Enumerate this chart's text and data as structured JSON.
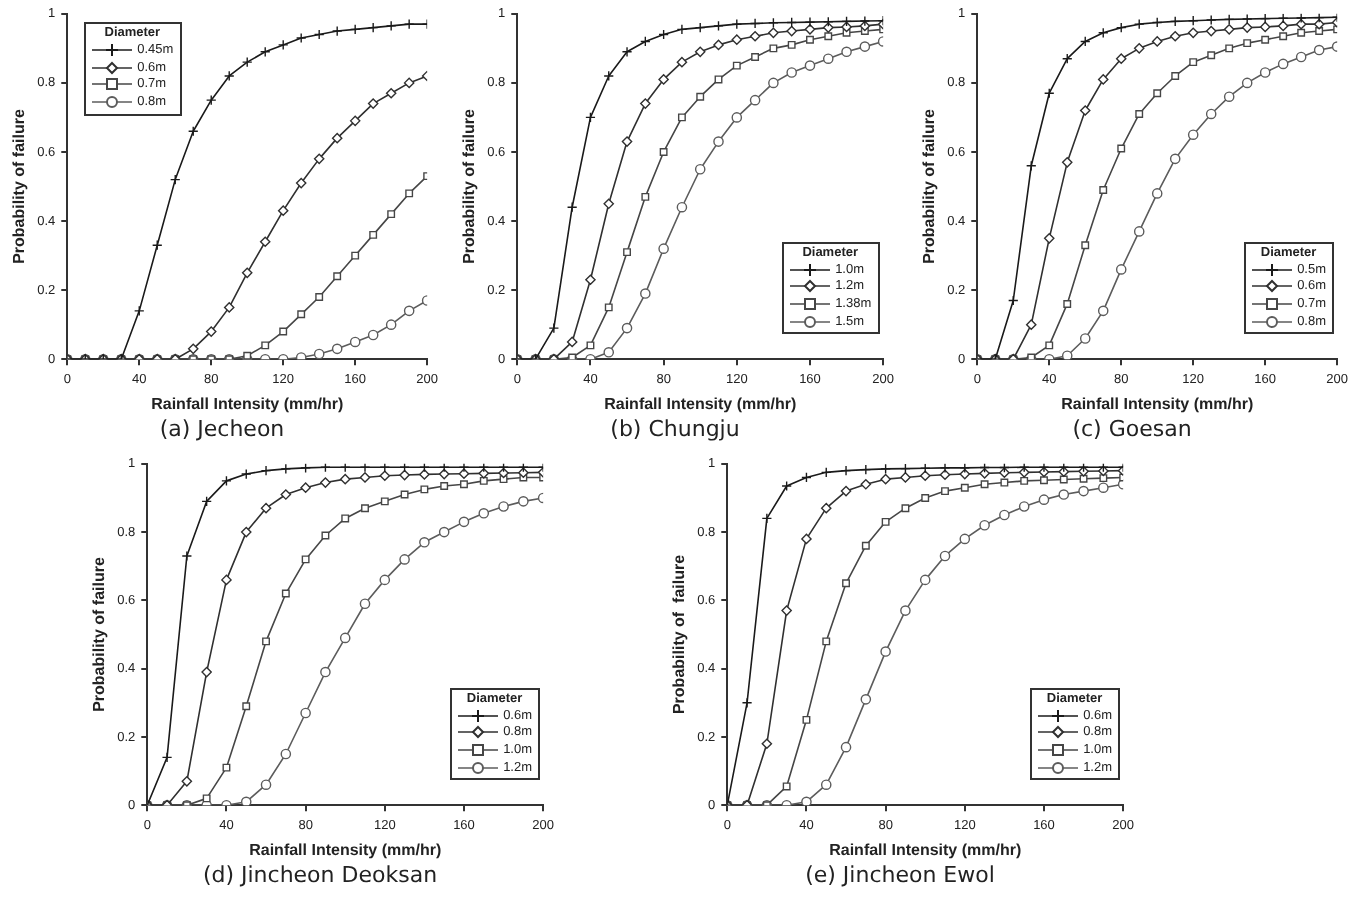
{
  "chart_data": [
    {
      "type": "line",
      "title": "(a) Jecheon",
      "xlabel": "Rainfall Intensity (mm/hr)",
      "ylabel": "Probability of failure",
      "legend_title": "Diameter",
      "legend": "top left",
      "grid": false,
      "x": [
        0,
        10,
        20,
        30,
        40,
        50,
        60,
        70,
        80,
        90,
        100,
        110,
        120,
        130,
        140,
        150,
        160,
        170,
        180,
        190,
        200
      ],
      "xlim": [
        0,
        200
      ],
      "xticks": [
        0,
        40,
        80,
        120,
        160,
        200
      ],
      "ylim": [
        0,
        1
      ],
      "yticks": [
        0,
        0.2,
        0.4,
        0.6,
        0.8,
        1
      ],
      "series": [
        {
          "name": "0.45m",
          "color": "#1a1a1a",
          "marker": "cross",
          "values": [
            0,
            0,
            0,
            0,
            0.14,
            0.33,
            0.52,
            0.66,
            0.75,
            0.82,
            0.86,
            0.89,
            0.91,
            0.93,
            0.94,
            0.95,
            0.955,
            0.96,
            0.965,
            0.97,
            0.97
          ]
        },
        {
          "name": "0.6m",
          "color": "#303030",
          "marker": "diamond",
          "values": [
            0,
            0,
            0,
            0,
            0,
            0,
            0,
            0.03,
            0.08,
            0.15,
            0.25,
            0.34,
            0.43,
            0.51,
            0.58,
            0.64,
            0.69,
            0.74,
            0.77,
            0.8,
            0.82
          ]
        },
        {
          "name": "0.7m",
          "color": "#464646",
          "marker": "square",
          "values": [
            0,
            0,
            0,
            0,
            0,
            0,
            0,
            0,
            0,
            0,
            0.01,
            0.04,
            0.08,
            0.13,
            0.18,
            0.24,
            0.3,
            0.36,
            0.42,
            0.48,
            0.53
          ]
        },
        {
          "name": "0.8m",
          "color": "#5c5c5c",
          "marker": "circle",
          "values": [
            0,
            0,
            0,
            0,
            0,
            0,
            0,
            0,
            0,
            0,
            0,
            0,
            0,
            0.005,
            0.015,
            0.03,
            0.05,
            0.07,
            0.1,
            0.14,
            0.17
          ]
        }
      ]
    },
    {
      "type": "line",
      "title": "(b) Chungju",
      "xlabel": "Rainfall Intensity (mm/hr)",
      "ylabel": "Probability of failure",
      "legend_title": "Diameter",
      "legend": "bottom right",
      "grid": false,
      "x": [
        0,
        10,
        20,
        30,
        40,
        50,
        60,
        70,
        80,
        90,
        100,
        110,
        120,
        130,
        140,
        150,
        160,
        170,
        180,
        190,
        200
      ],
      "xlim": [
        0,
        200
      ],
      "xticks": [
        0,
        40,
        80,
        120,
        160,
        200
      ],
      "ylim": [
        0,
        1
      ],
      "yticks": [
        0,
        0.2,
        0.4,
        0.6,
        0.8,
        1
      ],
      "series": [
        {
          "name": "1.0m",
          "color": "#1a1a1a",
          "marker": "cross",
          "values": [
            0,
            0,
            0.09,
            0.44,
            0.7,
            0.82,
            0.89,
            0.92,
            0.94,
            0.955,
            0.96,
            0.965,
            0.97,
            0.972,
            0.974,
            0.975,
            0.976,
            0.977,
            0.978,
            0.979,
            0.98
          ]
        },
        {
          "name": "1.2m",
          "color": "#303030",
          "marker": "diamond",
          "values": [
            0,
            0,
            0,
            0.05,
            0.23,
            0.45,
            0.63,
            0.74,
            0.81,
            0.86,
            0.89,
            0.91,
            0.925,
            0.935,
            0.945,
            0.95,
            0.955,
            0.96,
            0.962,
            0.965,
            0.97
          ]
        },
        {
          "name": "1.38m",
          "color": "#464646",
          "marker": "square",
          "values": [
            0,
            0,
            0,
            0.005,
            0.04,
            0.15,
            0.31,
            0.47,
            0.6,
            0.7,
            0.76,
            0.81,
            0.85,
            0.875,
            0.9,
            0.91,
            0.925,
            0.935,
            0.945,
            0.95,
            0.955
          ]
        },
        {
          "name": "1.5m",
          "color": "#5c5c5c",
          "marker": "circle",
          "values": [
            0,
            0,
            0,
            0,
            0,
            0.02,
            0.09,
            0.19,
            0.32,
            0.44,
            0.55,
            0.63,
            0.7,
            0.75,
            0.8,
            0.83,
            0.85,
            0.87,
            0.89,
            0.905,
            0.92
          ]
        }
      ]
    },
    {
      "type": "line",
      "title": "(c) Goesan",
      "xlabel": "Rainfall Intensity (mm/hr)",
      "ylabel": "Probability of failure",
      "legend_title": "Diameter",
      "legend": "bottom right",
      "grid": false,
      "x": [
        0,
        10,
        20,
        30,
        40,
        50,
        60,
        70,
        80,
        90,
        100,
        110,
        120,
        130,
        140,
        150,
        160,
        170,
        180,
        190,
        200
      ],
      "xlim": [
        0,
        200
      ],
      "xticks": [
        0,
        40,
        80,
        120,
        160,
        200
      ],
      "ylim": [
        0,
        1
      ],
      "yticks": [
        0,
        0.2,
        0.4,
        0.6,
        0.8,
        1
      ],
      "series": [
        {
          "name": "0.5m",
          "color": "#1a1a1a",
          "marker": "cross",
          "values": [
            0,
            0,
            0.17,
            0.56,
            0.77,
            0.87,
            0.92,
            0.945,
            0.96,
            0.97,
            0.975,
            0.978,
            0.98,
            0.982,
            0.984,
            0.985,
            0.986,
            0.987,
            0.988,
            0.989,
            0.99
          ]
        },
        {
          "name": "0.6m",
          "color": "#303030",
          "marker": "diamond",
          "values": [
            0,
            0,
            0,
            0.1,
            0.35,
            0.57,
            0.72,
            0.81,
            0.87,
            0.9,
            0.92,
            0.935,
            0.945,
            0.95,
            0.955,
            0.96,
            0.962,
            0.965,
            0.97,
            0.97,
            0.975
          ]
        },
        {
          "name": "0.7m",
          "color": "#464646",
          "marker": "square",
          "values": [
            0,
            0,
            0,
            0.005,
            0.04,
            0.16,
            0.33,
            0.49,
            0.61,
            0.71,
            0.77,
            0.82,
            0.86,
            0.88,
            0.9,
            0.915,
            0.925,
            0.935,
            0.945,
            0.95,
            0.955
          ]
        },
        {
          "name": "0.8m",
          "color": "#5c5c5c",
          "marker": "circle",
          "values": [
            0,
            0,
            0,
            0,
            0,
            0.01,
            0.06,
            0.14,
            0.26,
            0.37,
            0.48,
            0.58,
            0.65,
            0.71,
            0.76,
            0.8,
            0.83,
            0.855,
            0.875,
            0.895,
            0.905
          ]
        }
      ]
    },
    {
      "type": "line",
      "title": "(d) Jincheon Deoksan",
      "xlabel": "Rainfall Intensity (mm/hr)",
      "ylabel": "Probability of failure",
      "legend_title": "Diameter",
      "legend": "bottom right",
      "grid": false,
      "x": [
        0,
        10,
        20,
        30,
        40,
        50,
        60,
        70,
        80,
        90,
        100,
        110,
        120,
        130,
        140,
        150,
        160,
        170,
        180,
        190,
        200
      ],
      "xlim": [
        0,
        200
      ],
      "xticks": [
        0,
        40,
        80,
        120,
        160,
        200
      ],
      "ylim": [
        0,
        1
      ],
      "yticks": [
        0,
        0.2,
        0.4,
        0.6,
        0.8,
        1
      ],
      "series": [
        {
          "name": "0.6m",
          "color": "#1a1a1a",
          "marker": "cross",
          "values": [
            0,
            0.14,
            0.73,
            0.89,
            0.95,
            0.97,
            0.98,
            0.985,
            0.988,
            0.99,
            0.99,
            0.99,
            0.99,
            0.99,
            0.99,
            0.99,
            0.99,
            0.99,
            0.99,
            0.99,
            0.99
          ]
        },
        {
          "name": "0.8m",
          "color": "#303030",
          "marker": "diamond",
          "values": [
            0,
            0,
            0.07,
            0.39,
            0.66,
            0.8,
            0.87,
            0.91,
            0.93,
            0.945,
            0.955,
            0.96,
            0.965,
            0.967,
            0.969,
            0.97,
            0.971,
            0.972,
            0.973,
            0.974,
            0.975
          ]
        },
        {
          "name": "1.0m",
          "color": "#464646",
          "marker": "square",
          "values": [
            0,
            0,
            0,
            0.02,
            0.11,
            0.29,
            0.48,
            0.62,
            0.72,
            0.79,
            0.84,
            0.87,
            0.89,
            0.91,
            0.925,
            0.935,
            0.94,
            0.95,
            0.955,
            0.96,
            0.96
          ]
        },
        {
          "name": "1.2m",
          "color": "#5c5c5c",
          "marker": "circle",
          "values": [
            0,
            0,
            0,
            0,
            0,
            0.01,
            0.06,
            0.15,
            0.27,
            0.39,
            0.49,
            0.59,
            0.66,
            0.72,
            0.77,
            0.8,
            0.83,
            0.855,
            0.875,
            0.89,
            0.9
          ]
        }
      ]
    },
    {
      "type": "line",
      "title": "(e) Jincheon Ewol",
      "xlabel": "Rainfall Intensity (mm/hr)",
      "ylabel": "Probability of  failure",
      "legend_title": "Diameter",
      "legend": "bottom right",
      "grid": false,
      "x": [
        0,
        10,
        20,
        30,
        40,
        50,
        60,
        70,
        80,
        90,
        100,
        110,
        120,
        130,
        140,
        150,
        160,
        170,
        180,
        190,
        200
      ],
      "xlim": [
        0,
        200
      ],
      "xticks": [
        0,
        40,
        80,
        120,
        160,
        200
      ],
      "ylim": [
        0,
        1
      ],
      "yticks": [
        0,
        0.2,
        0.4,
        0.6,
        0.8,
        1
      ],
      "series": [
        {
          "name": "0.6m",
          "color": "#1a1a1a",
          "marker": "cross",
          "values": [
            0,
            0.3,
            0.84,
            0.935,
            0.96,
            0.975,
            0.98,
            0.983,
            0.985,
            0.986,
            0.987,
            0.988,
            0.988,
            0.989,
            0.989,
            0.99,
            0.99,
            0.99,
            0.99,
            0.99,
            0.99
          ]
        },
        {
          "name": "0.8m",
          "color": "#303030",
          "marker": "diamond",
          "values": [
            0,
            0,
            0.18,
            0.57,
            0.78,
            0.87,
            0.92,
            0.94,
            0.955,
            0.96,
            0.965,
            0.968,
            0.97,
            0.972,
            0.974,
            0.975,
            0.976,
            0.977,
            0.978,
            0.979,
            0.98
          ]
        },
        {
          "name": "1.0m",
          "color": "#464646",
          "marker": "square",
          "values": [
            0,
            0,
            0,
            0.055,
            0.25,
            0.48,
            0.65,
            0.76,
            0.83,
            0.87,
            0.9,
            0.92,
            0.93,
            0.94,
            0.945,
            0.95,
            0.952,
            0.954,
            0.956,
            0.958,
            0.96
          ]
        },
        {
          "name": "1.2m",
          "color": "#5c5c5c",
          "marker": "circle",
          "values": [
            0,
            0,
            0,
            0,
            0.01,
            0.06,
            0.17,
            0.31,
            0.45,
            0.57,
            0.66,
            0.73,
            0.78,
            0.82,
            0.85,
            0.875,
            0.895,
            0.91,
            0.92,
            0.93,
            0.94
          ]
        }
      ]
    }
  ]
}
